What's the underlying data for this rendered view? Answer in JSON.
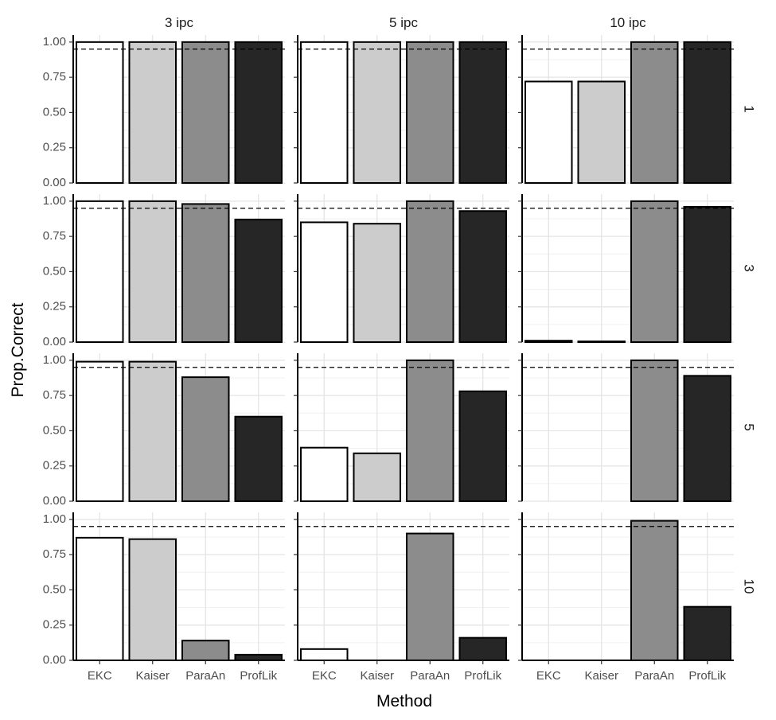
{
  "chart_data": {
    "type": "bar",
    "categories": [
      "EKC",
      "Kaiser",
      "ParaAn",
      "ProfLik"
    ],
    "colors": [
      "#ffffff",
      "#cccccc",
      "#8c8c8c",
      "#262626"
    ],
    "column_facet_labels": [
      "3 ipc",
      "5 ipc",
      "10 ipc"
    ],
    "row_facet_labels": [
      "1",
      "3",
      "5",
      "10"
    ],
    "xlabel": "Method",
    "ylabel": "Prop.Correct",
    "ylim": [
      0,
      1.05
    ],
    "yticks": [
      "0.00",
      "0.25",
      "0.50",
      "0.75",
      "1.00"
    ],
    "reference_line": 0.95,
    "grid": true,
    "panels": [
      {
        "row": "1",
        "col": "3 ipc",
        "values": [
          1.0,
          1.0,
          1.0,
          1.0
        ]
      },
      {
        "row": "1",
        "col": "5 ipc",
        "values": [
          1.0,
          1.0,
          1.0,
          1.0
        ]
      },
      {
        "row": "1",
        "col": "10 ipc",
        "values": [
          0.72,
          0.72,
          1.0,
          1.0
        ]
      },
      {
        "row": "3",
        "col": "3 ipc",
        "values": [
          1.0,
          1.0,
          0.98,
          0.87
        ]
      },
      {
        "row": "3",
        "col": "5 ipc",
        "values": [
          0.85,
          0.84,
          1.0,
          0.93
        ]
      },
      {
        "row": "3",
        "col": "10 ipc",
        "values": [
          0.01,
          0.005,
          1.0,
          0.96
        ]
      },
      {
        "row": "5",
        "col": "3 ipc",
        "values": [
          0.99,
          0.99,
          0.88,
          0.6
        ]
      },
      {
        "row": "5",
        "col": "5 ipc",
        "values": [
          0.38,
          0.34,
          1.0,
          0.78
        ]
      },
      {
        "row": "5",
        "col": "10 ipc",
        "values": [
          0.0,
          0.0,
          1.0,
          0.89
        ]
      },
      {
        "row": "10",
        "col": "3 ipc",
        "values": [
          0.87,
          0.86,
          0.14,
          0.04
        ]
      },
      {
        "row": "10",
        "col": "5 ipc",
        "values": [
          0.08,
          0.0,
          0.9,
          0.16
        ]
      },
      {
        "row": "10",
        "col": "10 ipc",
        "values": [
          0.0,
          0.0,
          0.99,
          0.38
        ]
      }
    ]
  }
}
